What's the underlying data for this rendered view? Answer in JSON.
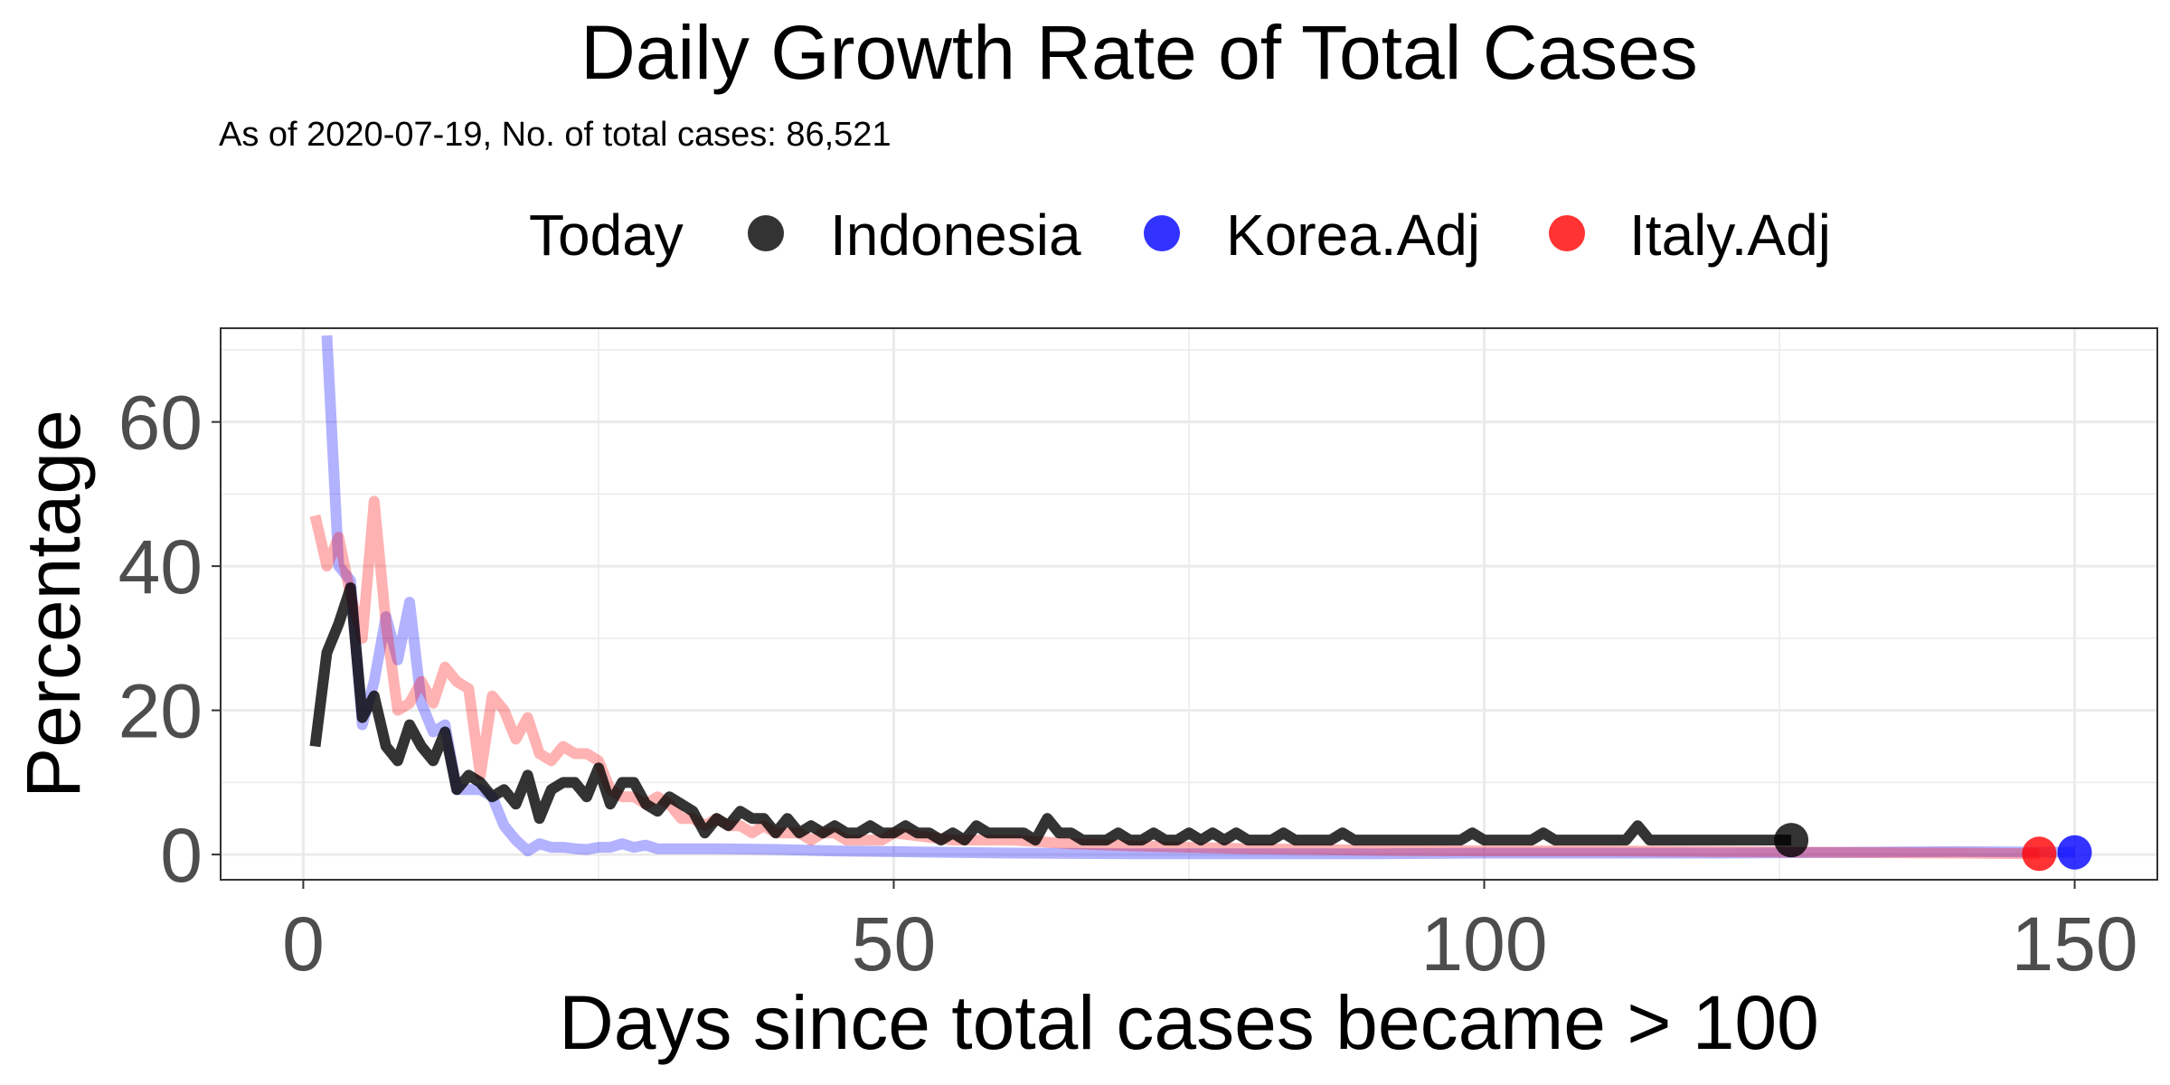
{
  "chart_data": {
    "type": "line",
    "title": "Daily Growth Rate of Total Cases",
    "subtitle": "As of 2020-07-19, No. of total cases: 86,521",
    "xlabel": "Days since total cases became > 100",
    "ylabel": "Percentage",
    "xlim": [
      -7,
      157
    ],
    "ylim": [
      -3.5,
      73
    ],
    "x_ticks": [
      0,
      50,
      100,
      150
    ],
    "y_ticks": [
      0,
      20,
      40,
      60
    ],
    "grid": true,
    "legend": {
      "position": "top",
      "title": "Today",
      "entries": [
        "Indonesia",
        "Korea.Adj",
        "Italy.Adj"
      ]
    },
    "colors": {
      "Indonesia": "#000000",
      "Korea.Adj": "#0000ff",
      "Italy.Adj": "#ff0000"
    },
    "series": [
      {
        "name": "Indonesia",
        "today_point": [
          126,
          2.0
        ],
        "x": [
          1,
          2,
          3,
          4,
          5,
          6,
          7,
          8,
          9,
          10,
          11,
          12,
          13,
          14,
          15,
          16,
          17,
          18,
          19,
          20,
          21,
          22,
          23,
          24,
          25,
          26,
          27,
          28,
          29,
          30,
          31,
          32,
          33,
          34,
          35,
          36,
          37,
          38,
          39,
          40,
          41,
          42,
          43,
          44,
          45,
          46,
          47,
          48,
          49,
          50,
          51,
          52,
          53,
          54,
          55,
          56,
          57,
          58,
          59,
          60,
          61,
          62,
          63,
          64,
          65,
          66,
          67,
          68,
          69,
          70,
          71,
          72,
          73,
          74,
          75,
          76,
          77,
          78,
          79,
          80,
          81,
          82,
          83,
          84,
          85,
          86,
          87,
          88,
          89,
          90,
          91,
          92,
          93,
          94,
          95,
          96,
          97,
          98,
          99,
          100,
          101,
          102,
          103,
          104,
          105,
          106,
          107,
          108,
          109,
          110,
          111,
          112,
          113,
          114,
          115,
          116,
          117,
          118,
          119,
          120,
          121,
          122,
          123,
          124,
          125,
          126
        ],
        "y": [
          15,
          28,
          32,
          37,
          19,
          22,
          15,
          13,
          18,
          15,
          13,
          17,
          9,
          11,
          10,
          8,
          9,
          7,
          11,
          5,
          9,
          10,
          10,
          8,
          12,
          7,
          10,
          10,
          7,
          6,
          8,
          7,
          6,
          3,
          5,
          4,
          6,
          5,
          5,
          3,
          5,
          3,
          4,
          3,
          4,
          3,
          3,
          4,
          3,
          3,
          4,
          3,
          3,
          2,
          3,
          2,
          4,
          3,
          3,
          3,
          3,
          2,
          5,
          3,
          3,
          2,
          2,
          2,
          3,
          2,
          2,
          3,
          2,
          2,
          3,
          2,
          3,
          2,
          3,
          2,
          2,
          2,
          3,
          2,
          2,
          2,
          2,
          3,
          2,
          2,
          2,
          2,
          2,
          2,
          2,
          2,
          2,
          2,
          3,
          2,
          2,
          2,
          2,
          2,
          3,
          2,
          2,
          2,
          2,
          2,
          2,
          2,
          4,
          2,
          2,
          2,
          2,
          2,
          2,
          2,
          2,
          2,
          2,
          2,
          2,
          2
        ]
      },
      {
        "name": "Korea.Adj",
        "today_point": [
          150,
          0.3
        ],
        "x": [
          2,
          3,
          4,
          5,
          6,
          7,
          8,
          9,
          10,
          11,
          12,
          13,
          14,
          15,
          16,
          17,
          18,
          19,
          20,
          21,
          22,
          23,
          24,
          25,
          26,
          27,
          28,
          29,
          30,
          35,
          40,
          45,
          50,
          55,
          60,
          70,
          80,
          90,
          100,
          110,
          120,
          130,
          140,
          150
        ],
        "y": [
          72,
          40,
          38,
          18,
          24,
          33,
          27,
          35,
          21,
          17,
          18,
          9,
          9,
          9,
          8,
          4,
          2,
          0.5,
          1.5,
          1,
          1,
          0.8,
          0.7,
          1,
          1,
          1.5,
          1,
          1.3,
          0.8,
          0.8,
          0.7,
          0.5,
          0.4,
          0.3,
          0.2,
          0.1,
          0.1,
          0.1,
          0.2,
          0.2,
          0.2,
          0.3,
          0.4,
          0.3
        ]
      },
      {
        "name": "Italy.Adj",
        "today_point": [
          147,
          0.1
        ],
        "x": [
          1,
          2,
          3,
          4,
          5,
          6,
          7,
          8,
          9,
          10,
          11,
          12,
          13,
          14,
          15,
          16,
          17,
          18,
          19,
          20,
          21,
          22,
          23,
          24,
          25,
          26,
          27,
          28,
          29,
          30,
          31,
          32,
          33,
          34,
          35,
          36,
          37,
          38,
          39,
          40,
          41,
          42,
          43,
          44,
          45,
          46,
          47,
          48,
          49,
          50,
          55,
          60,
          65,
          70,
          80,
          90,
          100,
          110,
          120,
          130,
          140,
          147
        ],
        "y": [
          47,
          40,
          44,
          36,
          30,
          49,
          32,
          20,
          21,
          24,
          21,
          26,
          24,
          23,
          11,
          22,
          20,
          16,
          19,
          14,
          13,
          15,
          14,
          14,
          13,
          9,
          8,
          8,
          7,
          8,
          7,
          5,
          5,
          4,
          5,
          4,
          4,
          3,
          4,
          3,
          3,
          3,
          2,
          3,
          3,
          2,
          2,
          2,
          2,
          3,
          2,
          2,
          1.5,
          1.2,
          0.8,
          0.6,
          0.5,
          0.5,
          0.4,
          0.3,
          0.2,
          0.1
        ]
      }
    ]
  }
}
